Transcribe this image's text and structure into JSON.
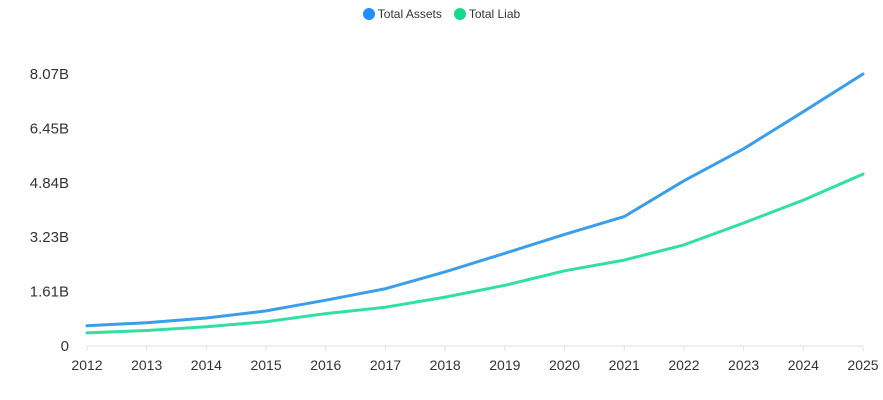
{
  "chart_data": {
    "type": "line",
    "title": "",
    "xlabel": "",
    "ylabel": "",
    "categories": [
      "2012",
      "2013",
      "2014",
      "2015",
      "2016",
      "2017",
      "2018",
      "2019",
      "2020",
      "2021",
      "2022",
      "2023",
      "2024",
      "2025"
    ],
    "y_ticks": [
      {
        "value": 0,
        "label": "0"
      },
      {
        "value": 1.61,
        "label": "1.61B"
      },
      {
        "value": 3.23,
        "label": "3.23B"
      },
      {
        "value": 4.84,
        "label": "4.84B"
      },
      {
        "value": 6.45,
        "label": "6.45B"
      },
      {
        "value": 8.07,
        "label": "8.07B"
      }
    ],
    "ylim": [
      0,
      8.07
    ],
    "grid": false,
    "legend_position": "top-center",
    "series": [
      {
        "name": "Total Assets",
        "color": "#3b9ee8",
        "legend_color": "#1e90ff",
        "values": [
          0.6,
          0.69,
          0.83,
          1.04,
          1.36,
          1.7,
          2.2,
          2.75,
          3.31,
          3.84,
          4.9,
          5.85,
          6.95,
          8.07
        ]
      },
      {
        "name": "Total Liab",
        "color": "#2fe0a0",
        "legend_color": "#14d98d",
        "values": [
          0.39,
          0.46,
          0.57,
          0.72,
          0.96,
          1.15,
          1.45,
          1.8,
          2.23,
          2.55,
          3.0,
          3.65,
          4.33,
          5.1
        ]
      }
    ]
  }
}
